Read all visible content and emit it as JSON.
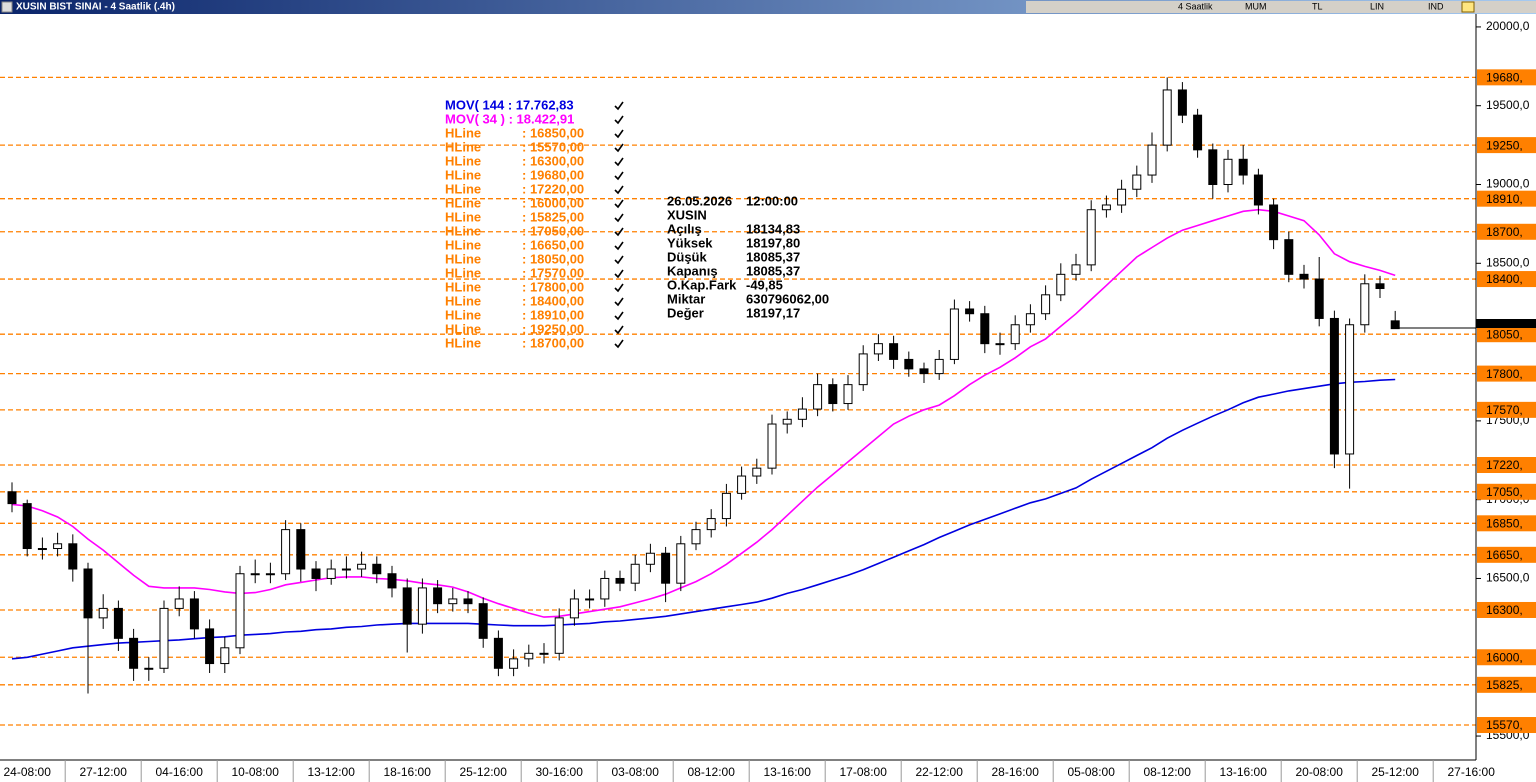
{
  "window": {
    "title": "XUSIN BIST SINAI - 4 Saatlik (.4h)",
    "toolbar": [
      "4 Saatlik",
      "MUM",
      "TL",
      "LIN",
      "IND"
    ]
  },
  "chart_data": {
    "type": "candlestick",
    "categories": [
      null,
      "24-08:00",
      null,
      null,
      null,
      null,
      "27-12:00",
      null,
      null,
      null,
      null,
      "04-16:00",
      null,
      null,
      null,
      null,
      "10-08:00",
      null,
      null,
      null,
      null,
      "13-12:00",
      null,
      null,
      null,
      null,
      "18-16:00",
      null,
      null,
      null,
      null,
      "25-12:00",
      null,
      null,
      null,
      null,
      "30-16:00",
      null,
      null,
      null,
      null,
      "03-08:00",
      null,
      null,
      null,
      null,
      "08-12:00",
      null,
      null,
      null,
      null,
      "13-16:00",
      null,
      null,
      null,
      null,
      "17-08:00",
      null,
      null,
      null,
      null,
      "22-12:00",
      null,
      null,
      null,
      null,
      "28-16:00",
      null,
      null,
      null,
      null,
      "05-08:00",
      null,
      null,
      null,
      null,
      "08-12:00",
      null,
      null,
      null,
      null,
      "13-16:00",
      null,
      null,
      null,
      null,
      "20-08:00",
      null,
      null,
      null,
      null,
      "25-12:00",
      null,
      null,
      null,
      null,
      "27-16:00"
    ],
    "open": [
      17050,
      16975,
      16690,
      16690,
      16720,
      16560,
      16250,
      16310,
      16120,
      15930,
      15930,
      16310,
      16370,
      16180,
      15960,
      16060,
      16530,
      16530,
      16530,
      16810,
      16560,
      16500,
      16560,
      16560,
      16590,
      16530,
      16440,
      16210,
      16440,
      16340,
      16370,
      16340,
      16120,
      15930,
      15990,
      16025,
      16025,
      16250,
      16370,
      16370,
      16500,
      16470,
      16590,
      16660,
      16470,
      16720,
      16810,
      16880,
      17040,
      17150,
      17200,
      17480,
      17510,
      17575,
      17730,
      17610,
      17730,
      17925,
      17990,
      17890,
      17830,
      17800,
      17890,
      18210,
      18180,
      17990,
      17990,
      18110,
      18180,
      18300,
      18430,
      18490,
      18840,
      18870,
      18970,
      19060,
      19250,
      19600,
      19440,
      19220,
      19000,
      19160,
      19060,
      18870,
      18650,
      18430,
      18400,
      18150,
      17290,
      18110,
      18370,
      18134.83,
      null,
      null,
      null,
      null,
      null
    ],
    "high": [
      17110,
      17000,
      16760,
      16790,
      16780,
      16600,
      16400,
      16360,
      16180,
      16000,
      16360,
      16450,
      16420,
      16240,
      16130,
      16580,
      16620,
      16600,
      16870,
      16850,
      16610,
      16620,
      16640,
      16670,
      16640,
      16580,
      16500,
      16500,
      16490,
      16440,
      16420,
      16380,
      16170,
      16050,
      16080,
      16090,
      16310,
      16430,
      16430,
      16550,
      16550,
      16650,
      16720,
      16700,
      16770,
      16860,
      16940,
      17100,
      17210,
      17260,
      17540,
      17560,
      17650,
      17800,
      17770,
      17790,
      17980,
      18050,
      18040,
      17940,
      17870,
      17950,
      18270,
      18260,
      18230,
      18060,
      18170,
      18240,
      18360,
      18500,
      18560,
      18900,
      18930,
      19030,
      19120,
      19330,
      19680,
      19650,
      19480,
      19260,
      19220,
      19250,
      19100,
      18910,
      18700,
      18490,
      18540,
      18200,
      18150,
      18430,
      18420,
      18197.8,
      null,
      null,
      null,
      null,
      null
    ],
    "low": [
      16920,
      16640,
      16620,
      16640,
      16480,
      15770,
      16180,
      16040,
      15850,
      15850,
      15900,
      16260,
      16120,
      15900,
      15900,
      16020,
      16470,
      16470,
      16490,
      16480,
      16420,
      16460,
      16500,
      16510,
      16470,
      16380,
      16030,
      16150,
      16280,
      16290,
      16280,
      16060,
      15880,
      15880,
      15940,
      15960,
      15980,
      16200,
      16310,
      16320,
      16420,
      16420,
      16540,
      16350,
      16420,
      16680,
      16760,
      16830,
      17000,
      17100,
      17160,
      17420,
      17460,
      17530,
      17560,
      17570,
      17690,
      17880,
      17830,
      17780,
      17740,
      17760,
      17860,
      18130,
      17930,
      17920,
      17950,
      18060,
      18140,
      18260,
      18390,
      18450,
      18790,
      18820,
      18920,
      19010,
      19210,
      19390,
      19170,
      18910,
      18950,
      19000,
      18810,
      18590,
      18380,
      18340,
      18100,
      17200,
      17070,
      18060,
      18280,
      18085.37,
      null,
      null,
      null,
      null,
      null
    ],
    "close": [
      16975,
      16690,
      16690,
      16720,
      16560,
      16250,
      16310,
      16120,
      15930,
      15930,
      16310,
      16370,
      16180,
      15960,
      16060,
      16530,
      16530,
      16530,
      16810,
      16560,
      16500,
      16560,
      16560,
      16590,
      16530,
      16440,
      16210,
      16440,
      16340,
      16370,
      16340,
      16120,
      15930,
      15990,
      16025,
      16025,
      16250,
      16370,
      16370,
      16500,
      16470,
      16590,
      16660,
      16470,
      16720,
      16810,
      16880,
      17040,
      17150,
      17200,
      17480,
      17510,
      17575,
      17730,
      17610,
      17730,
      17925,
      17990,
      17890,
      17830,
      17800,
      17890,
      18210,
      18180,
      17990,
      17990,
      18110,
      18180,
      18300,
      18430,
      18490,
      18840,
      18870,
      18970,
      19060,
      19250,
      19600,
      19440,
      19220,
      19000,
      19160,
      19060,
      18870,
      18650,
      18430,
      18400,
      18150,
      17290,
      18110,
      18370,
      18340,
      18085.37,
      null,
      null,
      null,
      null,
      null
    ],
    "series": [
      {
        "name": "MOV( 144 : 17.762,83",
        "color": "#0000e0",
        "values": [
          15990,
          16000,
          16020,
          16040,
          16060,
          16070,
          16080,
          16090,
          16095,
          16100,
          16105,
          16110,
          16118,
          16125,
          16130,
          16140,
          16145,
          16150,
          16160,
          16165,
          16175,
          16180,
          16190,
          16195,
          16205,
          16210,
          16215,
          16215,
          16215,
          16215,
          16215,
          16210,
          16205,
          16200,
          16200,
          16200,
          16205,
          16210,
          16215,
          16225,
          16230,
          16240,
          16250,
          16260,
          16275,
          16290,
          16305,
          16320,
          16335,
          16350,
          16375,
          16405,
          16430,
          16460,
          16490,
          16520,
          16555,
          16595,
          16635,
          16675,
          16715,
          16760,
          16800,
          16840,
          16875,
          16910,
          16945,
          16980,
          17005,
          17040,
          17075,
          17130,
          17180,
          17230,
          17280,
          17330,
          17390,
          17440,
          17485,
          17530,
          17570,
          17615,
          17650,
          17670,
          17690,
          17705,
          17720,
          17735,
          17745,
          17750,
          17758,
          17762.83,
          null,
          null,
          null,
          null,
          null
        ]
      },
      {
        "name": "MOV( 34 ) : 18.422,91",
        "color": "#ff00ff",
        "values": [
          16970,
          16960,
          16930,
          16890,
          16830,
          16750,
          16680,
          16600,
          16520,
          16450,
          16440,
          16440,
          16440,
          16430,
          16415,
          16405,
          16410,
          16430,
          16460,
          16475,
          16490,
          16505,
          16510,
          16510,
          16500,
          16495,
          16485,
          16470,
          16460,
          16445,
          16415,
          16375,
          16340,
          16310,
          16280,
          16255,
          16260,
          16275,
          16290,
          16305,
          16320,
          16345,
          16370,
          16400,
          16440,
          16480,
          16530,
          16590,
          16660,
          16730,
          16810,
          16900,
          16990,
          17080,
          17160,
          17240,
          17320,
          17400,
          17480,
          17530,
          17570,
          17600,
          17660,
          17730,
          17790,
          17840,
          17900,
          17970,
          18020,
          18100,
          18180,
          18270,
          18360,
          18450,
          18540,
          18600,
          18660,
          18710,
          18740,
          18770,
          18800,
          18830,
          18840,
          18830,
          18800,
          18770,
          18680,
          18560,
          18510,
          18480,
          18455,
          18422.91,
          null,
          null,
          null,
          null,
          null
        ]
      }
    ],
    "hlines": [
      {
        "name": "HLine",
        "label": ": 16850,00",
        "value": 16850,
        "axis_label": "16850,"
      },
      {
        "name": "HLine",
        "label": ": 15570,00",
        "value": 15570,
        "axis_label": "15570,"
      },
      {
        "name": "HLine",
        "label": ": 16300,00",
        "value": 16300,
        "axis_label": "16300,"
      },
      {
        "name": "HLine",
        "label": ": 19680,00",
        "value": 19680,
        "axis_label": "19680,"
      },
      {
        "name": "HLine",
        "label": ": 17220,00",
        "value": 17220,
        "axis_label": "17220,"
      },
      {
        "name": "HLine",
        "label": ": 16000,00",
        "value": 16000,
        "axis_label": "16000,"
      },
      {
        "name": "HLine",
        "label": ": 15825,00",
        "value": 15825,
        "axis_label": "15825,"
      },
      {
        "name": "HLine",
        "label": ": 17050,00",
        "value": 17050,
        "axis_label": "17050,"
      },
      {
        "name": "HLine",
        "label": ": 16650,00",
        "value": 16650,
        "axis_label": "16650,"
      },
      {
        "name": "HLine",
        "label": ": 18050,00",
        "value": 18050,
        "axis_label": "18050,"
      },
      {
        "name": "HLine",
        "label": ": 17570,00",
        "value": 17570,
        "axis_label": "17570,"
      },
      {
        "name": "HLine",
        "label": ": 17800,00",
        "value": 17800,
        "axis_label": "17800,"
      },
      {
        "name": "HLine",
        "label": ": 18400,00",
        "value": 18400,
        "axis_label": "18400,"
      },
      {
        "name": "HLine",
        "label": ": 18910,00",
        "value": 18910,
        "axis_label": "18910,"
      },
      {
        "name": "HLine",
        "label": ": 19250,00",
        "value": 19250,
        "axis_label": "19250,"
      },
      {
        "name": "HLine",
        "label": ": 18700,00",
        "value": 18700,
        "axis_label": "18700,"
      }
    ],
    "hline_color": "#ff8000",
    "ylim": [
      15348,
      20082
    ],
    "yticks": [
      {
        "value": 20000,
        "label": "20000,0"
      },
      {
        "value": 19500,
        "label": "19500,0"
      },
      {
        "value": 19000,
        "label": "19000,0"
      },
      {
        "value": 18500,
        "label": "18500,0"
      },
      {
        "value": 17500,
        "label": "17500,0"
      },
      {
        "value": 17000,
        "label": "17000,0"
      },
      {
        "value": 16500,
        "label": "16500,0"
      },
      {
        "value": 15500,
        "label": "15500,0"
      }
    ],
    "info": {
      "date": "26.05.2026",
      "time": "12:00:00",
      "symbol": "XUSIN",
      "rows": [
        {
          "label": "Açılış",
          "value": "18134,83"
        },
        {
          "label": "Yüksek",
          "value": "18197,80"
        },
        {
          "label": "Düşük",
          "value": "18085,37"
        },
        {
          "label": "Kapanış",
          "value": "18085,37"
        },
        {
          "label": "O.Kap.Fark",
          "value": "-49,85"
        },
        {
          "label": "Miktar",
          "value": "630796062,00"
        },
        {
          "label": "Değer",
          "value": "18197,17"
        }
      ]
    }
  }
}
